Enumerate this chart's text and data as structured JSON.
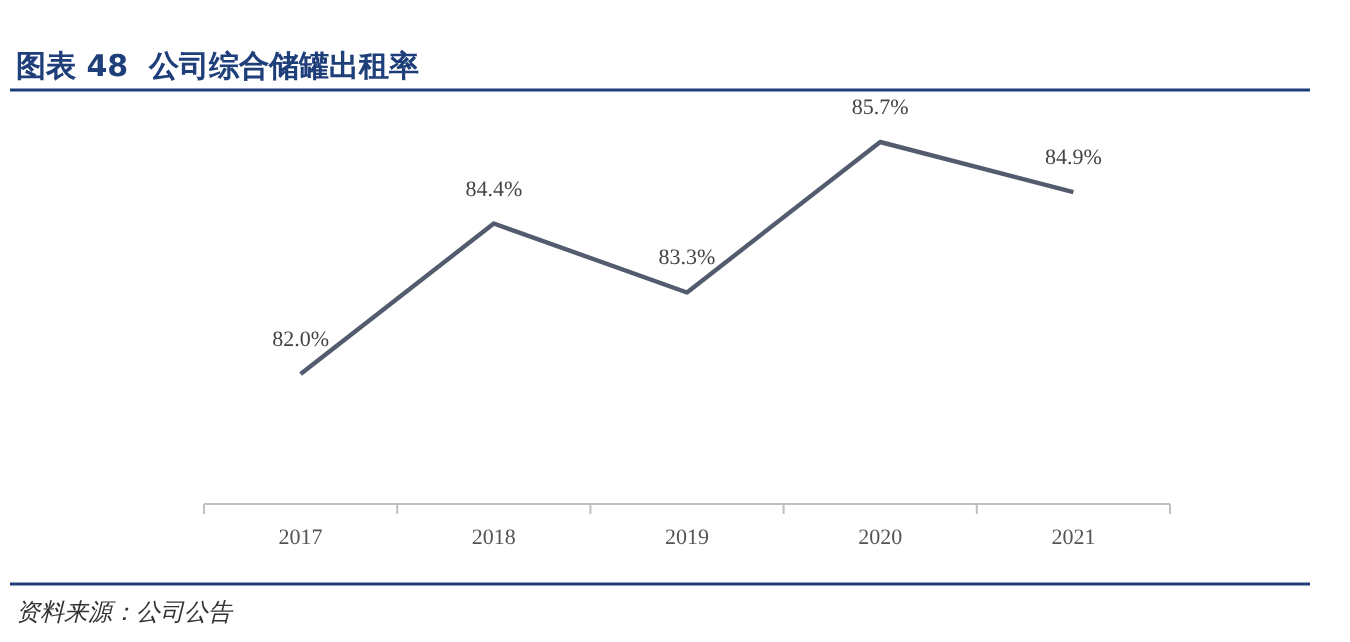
{
  "chart_data": {
    "type": "line",
    "title": "图表 48  公司综合储罐出租率",
    "categories": [
      "2017",
      "2018",
      "2019",
      "2020",
      "2021"
    ],
    "series": [
      {
        "color": "#535b6e",
        "values": [
          82.0,
          84.4,
          83.3,
          85.7,
          84.9
        ],
        "value_labels": [
          "82.0%",
          "84.4%",
          "83.3%",
          "85.7%",
          "84.9%"
        ]
      }
    ],
    "annotations": [
      "资料来源：公司公告"
    ],
    "marker": "none"
  }
}
